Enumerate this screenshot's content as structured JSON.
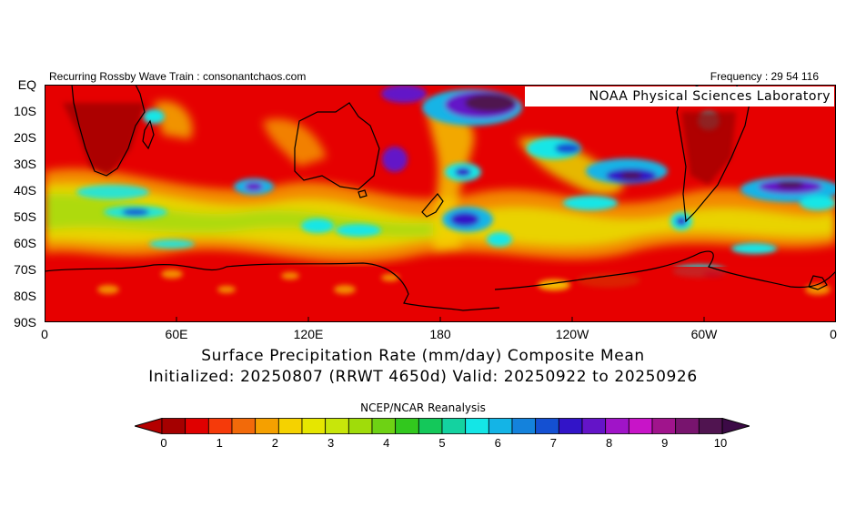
{
  "header": {
    "left_text": "Recurring Rossby Wave Train : consonantchaos.com",
    "right_text": "Frequency : 29 54 116"
  },
  "map": {
    "region": "Southern Hemisphere, EQ to 90S, 0 to 360",
    "credit": "NOAA Physical Sciences Laboratory",
    "y_axis_labels": [
      "EQ",
      "10S",
      "20S",
      "30S",
      "40S",
      "50S",
      "60S",
      "70S",
      "80S",
      "90S"
    ],
    "x_axis_labels": [
      "0",
      "60E",
      "120E",
      "180",
      "120W",
      "60W",
      "0"
    ]
  },
  "title": {
    "line1": "Surface Precipitation Rate (mm/day) Composite Mean",
    "line2": "Initialized: 20250807 (RRWT 4650d) Valid: 20250922 to 20250926"
  },
  "source": "NCEP/NCAR Reanalysis",
  "colorbar": {
    "labels": [
      "0",
      "1",
      "2",
      "3",
      "4",
      "5",
      "6",
      "7",
      "8",
      "9",
      "10"
    ],
    "colors": [
      "#a50000",
      "#e00000",
      "#f53a0a",
      "#f26a0a",
      "#f5a000",
      "#f5d200",
      "#e6e600",
      "#c8e60a",
      "#a0dc0a",
      "#6ed214",
      "#32c81e",
      "#14c85a",
      "#14d2a0",
      "#14e6e6",
      "#14b4e6",
      "#1482dc",
      "#1450d2",
      "#3214c8",
      "#6414c8",
      "#a014c8",
      "#c814c8",
      "#a0148c",
      "#78146e",
      "#501450"
    ],
    "underflow_color": "#b40000",
    "overflow_color": "#3c0a46"
  }
}
